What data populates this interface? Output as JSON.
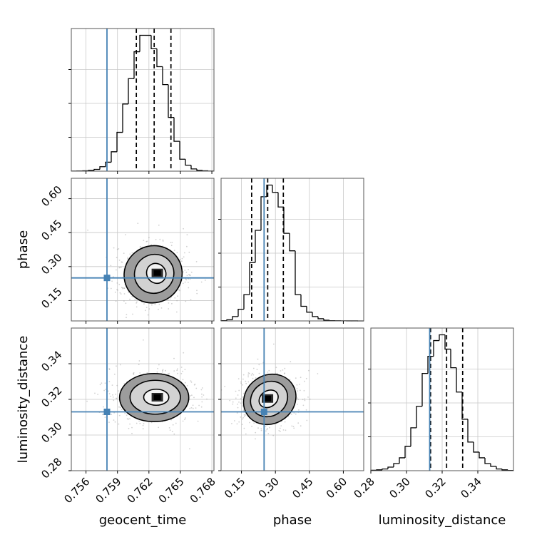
{
  "chart_data": {
    "type": "corner",
    "parameters": [
      {
        "key": "geocent_time",
        "label": "geocent_time",
        "range": [
          0.7546,
          0.7682
        ],
        "ticks": [
          0.756,
          0.759,
          0.762,
          0.765,
          0.768
        ],
        "tick_labels": [
          "0.756",
          "0.759",
          "0.762",
          "0.765",
          "0.768"
        ],
        "truth": 0.758,
        "quantiles": [
          0.7608,
          0.7625,
          0.7641
        ],
        "hist_bins": [
          0.0005,
          0.001,
          0.002,
          0.005,
          0.012,
          0.03,
          0.06,
          0.13,
          0.26,
          0.45,
          0.62,
          0.8,
          0.91,
          0.91,
          0.82,
          0.7,
          0.58,
          0.36,
          0.2,
          0.08,
          0.04,
          0.015,
          0.005,
          0.002,
          0.0005
        ]
      },
      {
        "key": "phase",
        "label": "phase",
        "range": [
          0.06,
          0.69
        ],
        "ticks": [
          0.15,
          0.3,
          0.45,
          0.6
        ],
        "tick_labels": [
          "0.15",
          "0.30",
          "0.45",
          "0.60"
        ],
        "truth": 0.25,
        "quantiles": [
          0.195,
          0.266,
          0.335
        ],
        "hist_bins": [
          0.002,
          0.008,
          0.03,
          0.08,
          0.18,
          0.4,
          0.62,
          0.85,
          0.93,
          0.88,
          0.78,
          0.6,
          0.48,
          0.18,
          0.1,
          0.06,
          0.03,
          0.015,
          0.005,
          0.002,
          0.001,
          0.0005,
          0.0003,
          0.0002,
          0.0001
        ]
      },
      {
        "key": "luminosity_distance",
        "label": "luminosity_distance",
        "range": [
          0.28,
          0.36
        ],
        "ticks": [
          0.28,
          0.3,
          0.32,
          0.34
        ],
        "tick_labels": [
          "0.28",
          "0.30",
          "0.32",
          "0.34"
        ],
        "truth": 0.313,
        "quantiles": [
          0.3135,
          0.3225,
          0.3315
        ],
        "hist_bins": [
          0.003,
          0.006,
          0.012,
          0.025,
          0.05,
          0.09,
          0.17,
          0.3,
          0.45,
          0.68,
          0.8,
          0.91,
          0.95,
          0.85,
          0.72,
          0.55,
          0.36,
          0.2,
          0.13,
          0.09,
          0.05,
          0.03,
          0.012,
          0.006,
          0.002
        ]
      }
    ],
    "density": [
      {
        "row": 1,
        "col": 0,
        "peak": [
          0.7628,
          0.272
        ],
        "contours": [
          {
            "center": [
              0.7627,
              0.27
            ],
            "rx": 0.0009,
            "ry": 0.045,
            "angle_deg": 35
          },
          {
            "center": [
              0.7625,
              0.268
            ],
            "rx": 0.0019,
            "ry": 0.085,
            "angle_deg": 35
          },
          {
            "center": [
              0.7624,
              0.266
            ],
            "rx": 0.0028,
            "ry": 0.125,
            "angle_deg": 35
          }
        ]
      },
      {
        "row": 2,
        "col": 0,
        "peak": [
          0.7628,
          0.3212
        ],
        "contours": [
          {
            "center": [
              0.7627,
              0.3212
            ],
            "rx": 0.0012,
            "ry": 0.0045,
            "angle_deg": 0
          },
          {
            "center": [
              0.7626,
              0.3212
            ],
            "rx": 0.0024,
            "ry": 0.0095,
            "angle_deg": 0
          },
          {
            "center": [
              0.7625,
              0.321
            ],
            "rx": 0.0033,
            "ry": 0.0135,
            "angle_deg": 0
          }
        ]
      },
      {
        "row": 2,
        "col": 1,
        "peak": [
          0.265,
          0.3205
        ],
        "contours": [
          {
            "center": [
              0.27,
              0.3203
            ],
            "rx": 0.045,
            "ry": 0.0045,
            "angle_deg": 35
          },
          {
            "center": [
              0.272,
              0.3202
            ],
            "rx": 0.085,
            "ry": 0.0095,
            "angle_deg": 35
          },
          {
            "center": [
              0.275,
              0.32
            ],
            "rx": 0.12,
            "ry": 0.0135,
            "angle_deg": 35
          }
        ]
      }
    ],
    "truth_color": "#4682b4",
    "line_color": "#000000",
    "grid": true
  }
}
